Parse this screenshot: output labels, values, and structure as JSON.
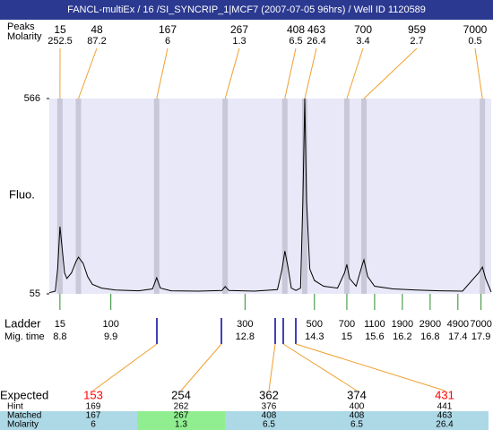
{
  "title": "FANCL-multiEx / 16 /SI_SYNCRIP_1|MCF7 (2007-07-05 96hrs) / Well ID 1120589",
  "peaks": {
    "label": "Peaks",
    "molarity_label": "Molarity",
    "sizes": [
      15,
      48,
      167,
      267,
      408,
      463,
      700,
      959,
      7000
    ],
    "molarity": [
      252.5,
      87.2,
      6,
      1.3,
      6.5,
      26.4,
      3.4,
      2.7,
      0.5
    ],
    "times": [
      8.8,
      9.2,
      10.89,
      12.37,
      13.66,
      14.09,
      15.0,
      15.37,
      17.93
    ]
  },
  "chart_data": {
    "type": "line",
    "ylabel": "Fluo.",
    "color": "#000000",
    "xlim": [
      8.57,
      18.12
    ],
    "ylim": [
      55,
      566
    ],
    "yticks": [
      55,
      566
    ],
    "x": [
      8.57,
      8.7,
      8.75,
      8.8,
      8.85,
      8.9,
      8.95,
      9.05,
      9.15,
      9.2,
      9.3,
      9.4,
      9.5,
      9.7,
      10.0,
      10.5,
      10.8,
      10.89,
      10.97,
      11.2,
      11.8,
      12.3,
      12.37,
      12.45,
      13.0,
      13.5,
      13.6,
      13.66,
      13.72,
      13.8,
      13.9,
      14.0,
      14.05,
      14.09,
      14.13,
      14.2,
      14.3,
      14.5,
      14.8,
      14.95,
      15.0,
      15.06,
      15.2,
      15.33,
      15.37,
      15.45,
      15.6,
      16.0,
      16.5,
      17.0,
      17.5,
      17.85,
      17.93,
      18.0,
      18.12
    ],
    "values": [
      58,
      62,
      120,
      231,
      170,
      110,
      95,
      110,
      140,
      151,
      135,
      100,
      80,
      70,
      65,
      63,
      68,
      97,
      70,
      63,
      62,
      64,
      74,
      64,
      62,
      66,
      120,
      167,
      130,
      70,
      64,
      70,
      300,
      566,
      300,
      120,
      90,
      75,
      70,
      110,
      132,
      95,
      75,
      130,
      144,
      100,
      75,
      68,
      65,
      63,
      62,
      110,
      125,
      95,
      60
    ]
  },
  "ladder": {
    "label": "Ladder",
    "time_label": "Mig. time",
    "sizes": [
      15,
      100,
      300,
      500,
      700,
      1100,
      1900,
      2900,
      4900,
      7000
    ],
    "times": [
      8.8,
      9.9,
      12.8,
      14.3,
      15,
      15.6,
      16.2,
      16.8,
      17.4,
      17.9
    ]
  },
  "table": {
    "labels": [
      "Expected",
      "Hint",
      "Matched",
      "Molarity"
    ],
    "expected": [
      153,
      254,
      362,
      374,
      431
    ],
    "expected_colors": [
      "#ff0000",
      "#000000",
      "#000000",
      "#000000",
      "#ff0000"
    ],
    "hint": [
      169,
      262,
      376,
      400,
      441
    ],
    "matched": [
      167,
      267,
      408,
      408,
      463
    ],
    "molarity": [
      6,
      1.3,
      6.5,
      6.5,
      26.4
    ],
    "cell_colors": [
      "#add8e6",
      "#90ee90",
      "#add8e6",
      "#add8e6",
      "#add8e6"
    ]
  }
}
